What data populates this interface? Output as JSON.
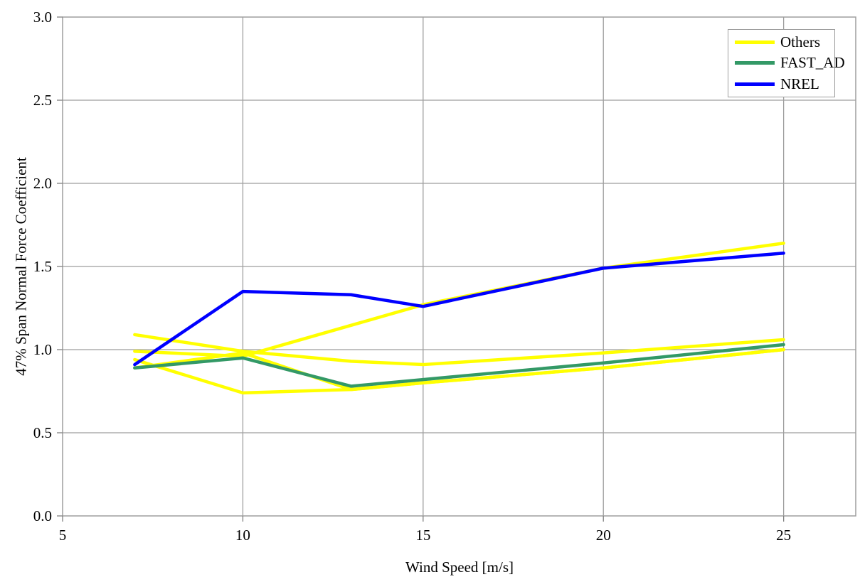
{
  "page": {
    "background": "#ffffff"
  },
  "chart_data": {
    "type": "line",
    "title": "",
    "xlabel": "Wind Speed [m/s]",
    "ylabel": "47% Span Normal Force Coefficient",
    "xlim": [
      5,
      27
    ],
    "ylim": [
      0.0,
      3.0
    ],
    "x_ticks": [
      5,
      10,
      15,
      20,
      25
    ],
    "x_tick_labels": [
      "5",
      "10",
      "15",
      "20",
      "25"
    ],
    "y_ticks": [
      0.0,
      0.5,
      1.0,
      1.5,
      2.0,
      2.5,
      3.0
    ],
    "y_tick_labels": [
      "0.0",
      "0.5",
      "1.0",
      "1.5",
      "2.0",
      "2.5",
      "3.0"
    ],
    "grid": true,
    "legend_position": "top-right",
    "colors": {
      "others": "#FFFF00",
      "fast_ad": "#339966",
      "nrel": "#0000FF",
      "gridline": "#9e9e9e",
      "tick": "#808080",
      "text": "#000000",
      "plot_border": "#9e9e9e"
    },
    "series": [
      {
        "name": "Others",
        "color": "#FFFF00",
        "x": [
          7,
          10,
          13,
          15,
          20,
          25
        ],
        "y": [
          1.09,
          0.99,
          0.93,
          0.91,
          0.98,
          1.06
        ]
      },
      {
        "name": "Others",
        "color": "#FFFF00",
        "x": [
          7,
          10,
          15,
          20,
          25
        ],
        "y": [
          0.99,
          0.96,
          1.27,
          1.49,
          1.64
        ]
      },
      {
        "name": "Others",
        "color": "#FFFF00",
        "x": [
          7,
          10,
          13,
          15,
          20,
          25
        ],
        "y": [
          0.94,
          0.74,
          0.76,
          0.8,
          0.89,
          1.0
        ]
      },
      {
        "name": "Others",
        "color": "#FFFF00",
        "x": [
          7,
          10,
          13,
          15,
          20,
          25
        ],
        "y": [
          0.89,
          0.98,
          0.76,
          0.8,
          0.89,
          1.0
        ]
      },
      {
        "name": "FAST_AD",
        "color": "#339966",
        "x": [
          7,
          10,
          13,
          15,
          20,
          25
        ],
        "y": [
          0.89,
          0.95,
          0.78,
          0.82,
          0.92,
          1.03
        ]
      },
      {
        "name": "NREL",
        "color": "#0000FF",
        "x": [
          7,
          10,
          13,
          15,
          20,
          25
        ],
        "y": [
          0.91,
          1.35,
          1.33,
          1.26,
          1.49,
          1.58
        ]
      }
    ],
    "legend": [
      {
        "label": "Others",
        "color": "#FFFF00"
      },
      {
        "label": "FAST_AD",
        "color": "#339966"
      },
      {
        "label": "NREL",
        "color": "#0000FF"
      }
    ]
  }
}
